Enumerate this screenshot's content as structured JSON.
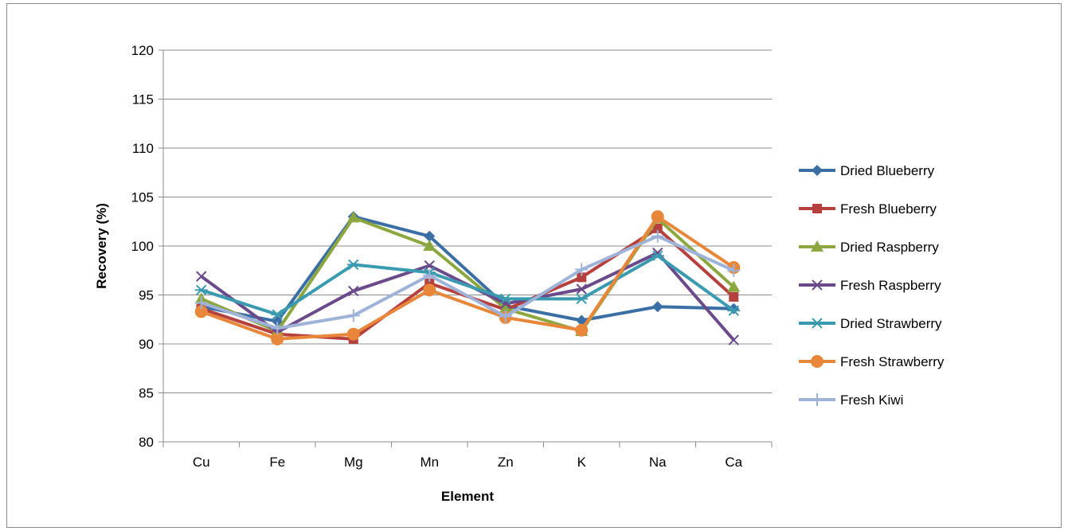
{
  "chart_data": {
    "type": "line",
    "title": "",
    "xlabel": "Element",
    "ylabel": "Recovery (%)",
    "categories": [
      "Cu",
      "Fe",
      "Mg",
      "Mn",
      "Zn",
      "K",
      "Na",
      "Ca"
    ],
    "ylim": [
      80,
      120
    ],
    "yticks": [
      80,
      85,
      90,
      95,
      100,
      105,
      110,
      115,
      120
    ],
    "grid": "horizontal",
    "legend_position": "right",
    "series": [
      {
        "name": "Dried Blueberry",
        "color": "#3a6ea5",
        "marker": "diamond",
        "values": [
          93.8,
          92.3,
          103.0,
          101.0,
          93.9,
          92.4,
          93.8,
          93.6
        ]
      },
      {
        "name": "Fresh Blueberry",
        "color": "#b5403e",
        "marker": "square",
        "values": [
          93.6,
          91.0,
          90.5,
          96.2,
          93.5,
          96.8,
          101.8,
          94.8
        ]
      },
      {
        "name": "Dried Raspberry",
        "color": "#8ca73f",
        "marker": "triangle",
        "values": [
          94.6,
          91.3,
          102.9,
          100.0,
          93.6,
          91.3,
          102.8,
          95.8
        ]
      },
      {
        "name": "Fresh Raspberry",
        "color": "#6a4a8a",
        "marker": "x",
        "values": [
          96.9,
          91.2,
          95.4,
          98.0,
          94.1,
          95.6,
          99.3,
          90.4
        ]
      },
      {
        "name": "Dried Strawberry",
        "color": "#3a9bb0",
        "marker": "star",
        "values": [
          95.5,
          93.0,
          98.1,
          97.3,
          94.6,
          94.6,
          99.0,
          93.4
        ]
      },
      {
        "name": "Fresh Strawberry",
        "color": "#e8863a",
        "marker": "circle",
        "values": [
          93.3,
          90.5,
          91.0,
          95.5,
          92.7,
          91.4,
          103.0,
          97.8
        ]
      },
      {
        "name": "Fresh Kiwi",
        "color": "#9fb3d8",
        "marker": "plus",
        "values": [
          94.2,
          91.6,
          92.9,
          97.0,
          92.8,
          97.6,
          101.0,
          97.5
        ]
      }
    ]
  }
}
